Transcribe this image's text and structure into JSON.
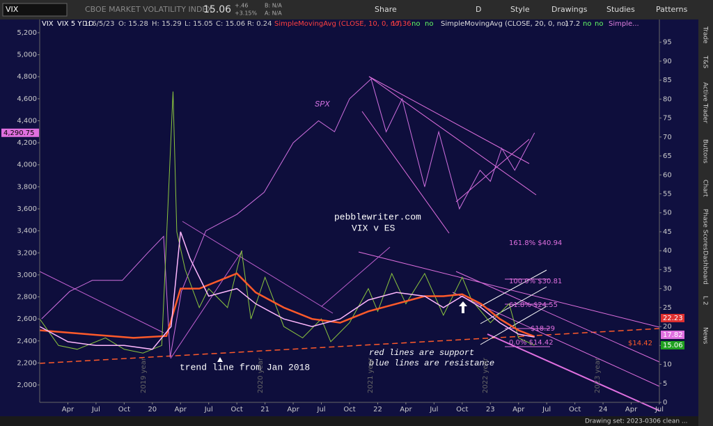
{
  "toolbar": {
    "symbol": "VIX",
    "description": "CBOE MARKET VOLATILITY INDEX",
    "last": "15.06",
    "change": "+.46",
    "change_pct": "+3.15%",
    "bid": "B: N/A",
    "ask": "A: N/A",
    "buttons": [
      "Share",
      "D",
      "Style",
      "Drawings",
      "Studies",
      "Patterns"
    ]
  },
  "sidebar_tabs": [
    "Trade",
    "T&S",
    "Active Trader",
    "Buttons",
    "Chart",
    "Phase Scores",
    "Dashboard",
    "L 2",
    "News"
  ],
  "footer": "Drawing set: 2023-0306 clean ...",
  "chart_data": {
    "type": "line",
    "header": {
      "period": "VIX 5 Y 1D",
      "date": "D: 6/5/23",
      "open": "O: 15.28",
      "high": "H: 15.29",
      "low": "L: 15.05",
      "close": "C: 15.06",
      "range": "R: 0.24",
      "sma10_value": "17.36",
      "sma20_value": "17.2",
      "flags": [
        "no",
        "no",
        "no",
        "no"
      ],
      "more": "Simple..."
    },
    "xlim": [
      0,
      66
    ],
    "xticks": [
      {
        "value": 3,
        "label": "Apr"
      },
      {
        "value": 6,
        "label": "Jul"
      },
      {
        "value": 9,
        "label": "Oct"
      },
      {
        "value": 12,
        "label": "20"
      },
      {
        "value": 15,
        "label": "Apr"
      },
      {
        "value": 18,
        "label": "Jul"
      },
      {
        "value": 21,
        "label": "Oct"
      },
      {
        "value": 24,
        "label": "21"
      },
      {
        "value": 27,
        "label": "Apr"
      },
      {
        "value": 30,
        "label": "Jul"
      },
      {
        "value": 33,
        "label": "Oct"
      },
      {
        "value": 36,
        "label": "22"
      },
      {
        "value": 39,
        "label": "Apr"
      },
      {
        "value": 42,
        "label": "Jul"
      },
      {
        "value": 45,
        "label": "Oct"
      },
      {
        "value": 48,
        "label": "23"
      },
      {
        "value": 51,
        "label": "Apr"
      },
      {
        "value": 54,
        "label": "Jul"
      },
      {
        "value": 57,
        "label": "Oct"
      },
      {
        "value": 60,
        "label": "24"
      },
      {
        "value": 63,
        "label": "Apr"
      },
      {
        "value": 66,
        "label": "Jul"
      }
    ],
    "ylim": [
      1842,
      5320
    ],
    "yticks": [
      {
        "value": 2000,
        "label": "2,000"
      },
      {
        "value": 2200,
        "label": "2,200"
      },
      {
        "value": 2400,
        "label": "2,400"
      },
      {
        "value": 2600,
        "label": "2,600"
      },
      {
        "value": 2800,
        "label": "2,800"
      },
      {
        "value": 3000,
        "label": "3,000"
      },
      {
        "value": 3200,
        "label": "3,200"
      },
      {
        "value": 3400,
        "label": "3,400"
      },
      {
        "value": 3600,
        "label": "3,600"
      },
      {
        "value": 3800,
        "label": "3,800"
      },
      {
        "value": 4000,
        "label": "4,000"
      },
      {
        "value": 4200,
        "label": "4,200"
      },
      {
        "value": 4400,
        "label": "4,400"
      },
      {
        "value": 4600,
        "label": "4,600"
      },
      {
        "value": 4800,
        "label": "4,800"
      },
      {
        "value": 5000,
        "label": "5,000"
      },
      {
        "value": 5200,
        "label": "5,200"
      }
    ],
    "y2lim": [
      0,
      101
    ],
    "y2ticks": [
      0,
      5,
      10,
      15,
      20,
      25,
      30,
      35,
      40,
      45,
      50,
      55,
      60,
      65,
      70,
      75,
      80,
      85,
      90,
      95
    ],
    "grid": false,
    "series": [
      {
        "name": "SPX",
        "color": "#d070e0",
        "axis": "y",
        "x": [
          0.2,
          3.2,
          5.6,
          8.8,
          11.5,
          13.2,
          13.9,
          15.1,
          17.7,
          21,
          23.9,
          27,
          29.7,
          31.4,
          33,
          35.3,
          36.9,
          38.6,
          41,
          42.5,
          44.7,
          46.9,
          48,
          49.2,
          50.6,
          52.7
        ],
        "values": [
          2600,
          2850,
          2950,
          2950,
          3200,
          3350,
          2250,
          2850,
          3400,
          3550,
          3750,
          4200,
          4400,
          4300,
          4600,
          4780,
          4300,
          4600,
          3800,
          4300,
          3600,
          3950,
          3850,
          4150,
          3950,
          4290.75
        ]
      },
      {
        "name": "VIX",
        "color": "#8cc63f",
        "axis": "y2",
        "x": [
          0,
          2,
          4,
          7,
          9,
          11,
          13,
          14.2,
          14.6,
          15.5,
          17,
          18,
          20,
          21.5,
          22.5,
          24,
          26,
          28,
          30,
          31,
          33,
          35,
          36,
          37.5,
          39,
          41,
          43,
          45,
          46,
          48,
          50,
          51,
          52.7
        ],
        "values": [
          22,
          15,
          14,
          17,
          14,
          13,
          15,
          82,
          45,
          35,
          25,
          30,
          25,
          40,
          22,
          33,
          20,
          17,
          22,
          16,
          21,
          30,
          24,
          34,
          26,
          34,
          23,
          33,
          27,
          21,
          26,
          17,
          15.06
        ]
      },
      {
        "name": "SimpleMovingAvg (CLOSE, 10, 0, no)",
        "color": "#ff5a2a",
        "axis": "y2",
        "x": [
          0,
          5,
          10,
          13.5,
          15,
          17,
          20,
          21,
          23,
          26,
          29,
          32,
          35,
          38,
          41,
          43,
          45,
          47,
          49,
          51,
          52.7
        ],
        "values": [
          19,
          18,
          17,
          17.5,
          30,
          30,
          33,
          34,
          29,
          25,
          22,
          21,
          24,
          26,
          28,
          28,
          28.5,
          26,
          22,
          19,
          17.36
        ]
      },
      {
        "name": "SimpleMovingAvg (CLOSE, 20, 0, no)",
        "color": "#ffb8ff",
        "axis": "y2",
        "x": [
          0,
          3,
          6,
          9,
          12,
          14,
          15,
          16,
          18,
          21,
          23,
          26,
          29,
          32,
          35,
          38,
          41,
          43,
          45,
          47,
          49,
          51,
          52.7
        ],
        "values": [
          20,
          16,
          15,
          15,
          14,
          20,
          45,
          38,
          28,
          30,
          26,
          22,
          20,
          22,
          27,
          29,
          28,
          25,
          28,
          25,
          21,
          18,
          17.2
        ]
      }
    ],
    "price_labels": [
      {
        "value": 22.23,
        "color": "#e03030"
      },
      {
        "value": 17.82,
        "color": "#e070e0"
      },
      {
        "value": 15.06,
        "color": "#20a020"
      }
    ],
    "spx_label": {
      "value": 4290.75,
      "label": "4,290.75"
    },
    "support_label": "$14.42",
    "annotations": [
      "pebblewriter.com",
      "VIX v ES",
      "trend line from Jan 2018",
      "red lines are support",
      "blue lines are resistance"
    ],
    "fib_labels": [
      "161.8% $40.94",
      "100.0% $30.81",
      "61.8% $24.55",
      "$18.29",
      "0.0% $14.42"
    ],
    "year_labels": [
      "2019 year",
      "2020 year",
      "2021 year",
      "2022 year",
      "2023 year"
    ]
  }
}
